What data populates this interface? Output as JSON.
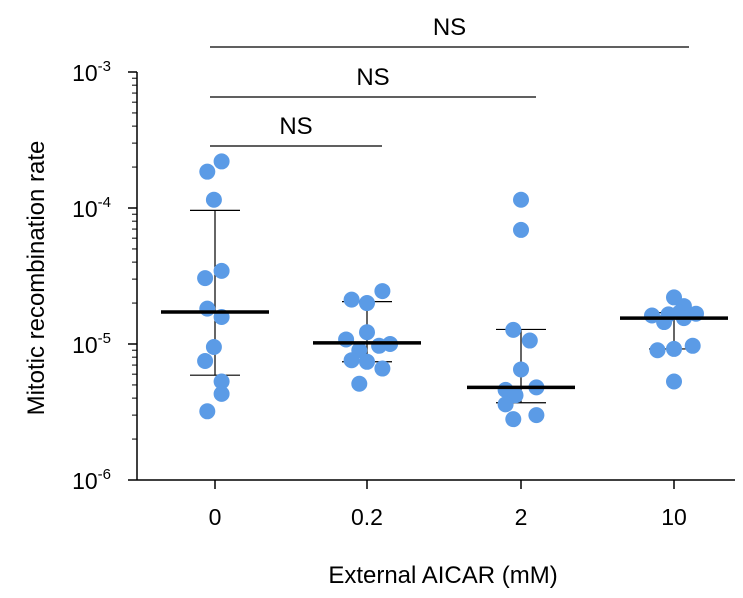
{
  "chart_data": {
    "type": "scatter",
    "xlabel": "External AICAR (mM)",
    "ylabel": "Mitotic recombination rate",
    "y_scale": "log",
    "ylim": [
      1e-06,
      0.001
    ],
    "y_ticks": [
      {
        "base": "10",
        "exp": "-3",
        "value": 0.001
      },
      {
        "base": "10",
        "exp": "-4",
        "value": 0.0001
      },
      {
        "base": "10",
        "exp": "-5",
        "value": 1e-05
      },
      {
        "base": "10",
        "exp": "-6",
        "value": 1e-06
      }
    ],
    "categories": [
      "0",
      "0.2",
      "2",
      "10"
    ],
    "point_color": "#5b9be6",
    "groups": [
      {
        "category": "0",
        "points": [
          {
            "offset": -0.35,
            "y": 0.000185
          },
          {
            "offset": 0.3,
            "y": 0.00022
          },
          {
            "offset": -0.05,
            "y": 0.000115
          },
          {
            "offset": -0.45,
            "y": 3.05e-05
          },
          {
            "offset": 0.3,
            "y": 3.45e-05
          },
          {
            "offset": -0.35,
            "y": 1.82e-05
          },
          {
            "offset": 0.3,
            "y": 1.58e-05
          },
          {
            "offset": -0.45,
            "y": 7.5e-06
          },
          {
            "offset": -0.05,
            "y": 9.5e-06
          },
          {
            "offset": 0.3,
            "y": 5.3e-06
          },
          {
            "offset": 0.3,
            "y": 4.3e-06
          },
          {
            "offset": -0.35,
            "y": 3.2e-06
          }
        ],
        "median": 1.72e-05,
        "err_low": 5.9e-06,
        "err_high": 9.6e-05
      },
      {
        "category": "0.2",
        "points": [
          {
            "offset": -0.7,
            "y": 2.12e-05
          },
          {
            "offset": 0.0,
            "y": 2e-05
          },
          {
            "offset": 0.7,
            "y": 2.45e-05
          },
          {
            "offset": -0.95,
            "y": 1.08e-05
          },
          {
            "offset": -0.35,
            "y": 9e-06
          },
          {
            "offset": 0.0,
            "y": 1.22e-05
          },
          {
            "offset": 0.55,
            "y": 9.7e-06
          },
          {
            "offset": 1.05,
            "y": 1e-05
          },
          {
            "offset": -0.7,
            "y": 7.6e-06
          },
          {
            "offset": 0.0,
            "y": 7.4e-06
          },
          {
            "offset": 0.7,
            "y": 6.6e-06
          },
          {
            "offset": -0.35,
            "y": 5.1e-06
          }
        ],
        "median": 1.02e-05,
        "err_low": 7.4e-06,
        "err_high": 2.05e-05
      },
      {
        "category": "2",
        "points": [
          {
            "offset": 0.0,
            "y": 0.000115
          },
          {
            "offset": 0.0,
            "y": 6.9e-05
          },
          {
            "offset": -0.35,
            "y": 1.27e-05
          },
          {
            "offset": 0.4,
            "y": 1.06e-05
          },
          {
            "offset": 0.0,
            "y": 6.5e-06
          },
          {
            "offset": -0.7,
            "y": 4.6e-06
          },
          {
            "offset": 0.7,
            "y": 4.8e-06
          },
          {
            "offset": -0.25,
            "y": 4.2e-06
          },
          {
            "offset": -0.7,
            "y": 3.6e-06
          },
          {
            "offset": 0.7,
            "y": 3e-06
          },
          {
            "offset": -0.35,
            "y": 2.8e-06
          }
        ],
        "median": 4.8e-06,
        "err_low": 3.7e-06,
        "err_high": 1.28e-05
      },
      {
        "category": "10",
        "points": [
          {
            "offset": 0.0,
            "y": 2.2e-05
          },
          {
            "offset": 0.45,
            "y": 1.9e-05
          },
          {
            "offset": -0.25,
            "y": 1.65e-05
          },
          {
            "offset": 0.25,
            "y": 1.7e-05
          },
          {
            "offset": -1.0,
            "y": 1.62e-05
          },
          {
            "offset": 1.0,
            "y": 1.67e-05
          },
          {
            "offset": -0.45,
            "y": 1.45e-05
          },
          {
            "offset": 0.45,
            "y": 1.55e-05
          },
          {
            "offset": -0.75,
            "y": 9e-06
          },
          {
            "offset": 0.0,
            "y": 9.2e-06
          },
          {
            "offset": 0.85,
            "y": 9.7e-06
          },
          {
            "offset": 0.0,
            "y": 5.3e-06
          }
        ],
        "median": 1.55e-05,
        "err_low": 9.2e-06,
        "err_high": 1.7e-05
      }
    ],
    "significance": [
      {
        "from": "0",
        "to": "0.2",
        "label": "NS"
      },
      {
        "from": "0",
        "to": "2",
        "label": "NS"
      },
      {
        "from": "0",
        "to": "10",
        "label": "NS"
      }
    ]
  }
}
